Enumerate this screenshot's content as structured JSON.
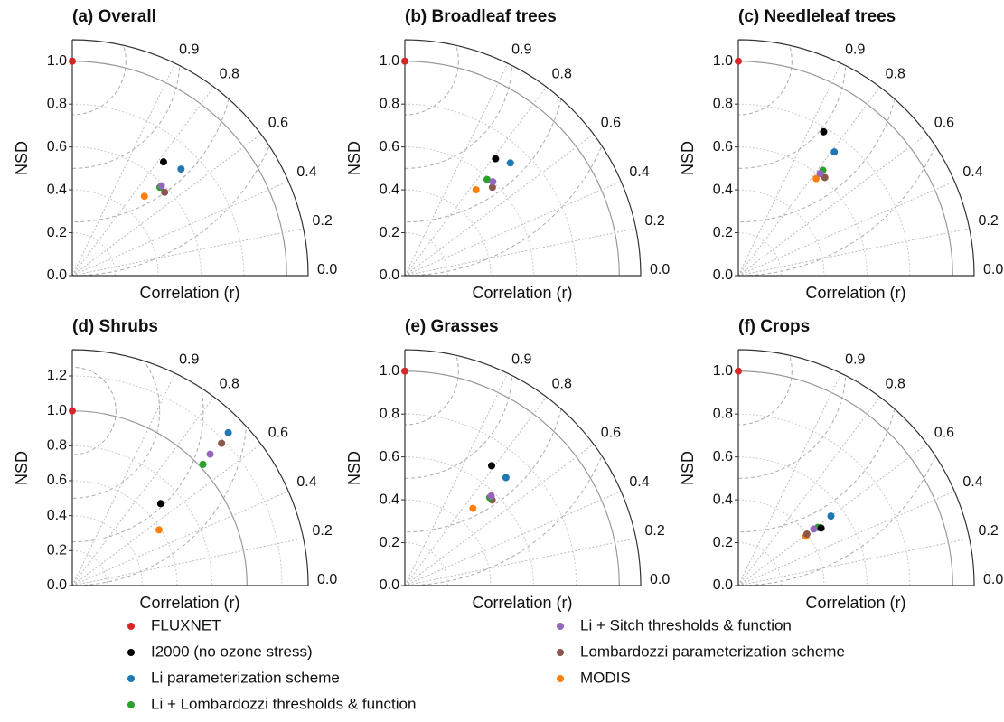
{
  "chart_data": [
    {
      "type": "taylor",
      "title": "(a) Overall",
      "xlabel": "Correlation (r)",
      "ylabel": "NSD",
      "ylim": [
        0,
        1.1
      ],
      "yticks": [
        {
          "value": 0,
          "label": "0.0"
        },
        0.2,
        0.4,
        0.6,
        0.8,
        {
          "value": 1,
          "label": "1.0"
        }
      ],
      "rticks": [
        0.9,
        0.8,
        0.6,
        0.4,
        0.2,
        {
          "value": 0,
          "label": "0.0"
        }
      ],
      "correlation": [
        1,
        0.78,
        0.7,
        0.71,
        0.71,
        0.67,
        0.74
      ],
      "nsd": [
        1,
        0.68,
        0.71,
        0.58,
        0.59,
        0.58,
        0.5
      ]
    },
    {
      "type": "taylor",
      "title": "(b) Broadleaf trees",
      "xlabel": "Correlation (r)",
      "ylabel": "NSD",
      "ylim": [
        0,
        1.1
      ],
      "yticks": [
        {
          "value": 0,
          "label": "0.0"
        },
        0.2,
        0.4,
        0.6,
        0.8,
        {
          "value": 1,
          "label": "1.0"
        }
      ],
      "rticks": [
        0.9,
        0.8,
        0.6,
        0.4,
        0.2,
        {
          "value": 0,
          "label": "0.0"
        }
      ],
      "correlation": [
        1,
        0.79,
        0.73,
        0.76,
        0.73,
        0.71,
        0.77
      ],
      "nsd": [
        1,
        0.69,
        0.72,
        0.59,
        0.6,
        0.58,
        0.52
      ]
    },
    {
      "type": "taylor",
      "title": "(c) Needleleaf trees",
      "xlabel": "Correlation (r)",
      "ylabel": "NSD",
      "ylim": [
        0,
        1.1
      ],
      "yticks": [
        {
          "value": 0,
          "label": "0.0"
        },
        0.2,
        0.4,
        0.6,
        0.8,
        {
          "value": 1,
          "label": "1.0"
        }
      ],
      "rticks": [
        0.9,
        0.8,
        0.6,
        0.4,
        0.2,
        {
          "value": 0,
          "label": "0.0"
        }
      ],
      "correlation": [
        1,
        0.86,
        0.79,
        0.78,
        0.78,
        0.75,
        0.78
      ],
      "nsd": [
        1,
        0.78,
        0.73,
        0.63,
        0.61,
        0.61,
        0.58
      ]
    },
    {
      "type": "taylor",
      "title": "(d) Shrubs",
      "xlabel": "Correlation (r)",
      "ylabel": "NSD",
      "ylim": [
        0,
        1.35
      ],
      "yticks": [
        {
          "value": 0,
          "label": "0.0"
        },
        0.2,
        0.4,
        0.6,
        0.8,
        {
          "value": 1,
          "label": "1.0"
        },
        1.2
      ],
      "rticks": [
        0.9,
        0.8,
        0.6,
        0.4,
        0.2,
        {
          "value": 0,
          "label": "0.0"
        }
      ],
      "correlation": [
        1,
        0.68,
        0.7,
        0.68,
        0.69,
        0.69,
        0.54
      ],
      "nsd": [
        1,
        0.69,
        1.25,
        1.02,
        1.09,
        1.18,
        0.59
      ]
    },
    {
      "type": "taylor",
      "title": "(e) Grasses",
      "xlabel": "Correlation (r)",
      "ylabel": "NSD",
      "ylim": [
        0,
        1.1
      ],
      "yticks": [
        {
          "value": 0,
          "label": "0.0"
        },
        0.2,
        0.4,
        0.6,
        0.8,
        {
          "value": 1,
          "label": "1.0"
        }
      ],
      "rticks": [
        0.9,
        0.8,
        0.6,
        0.4,
        0.2,
        {
          "value": 0,
          "label": "0.0"
        }
      ],
      "correlation": [
        1,
        0.81,
        0.73,
        0.72,
        0.72,
        0.7,
        0.75
      ],
      "nsd": [
        1,
        0.69,
        0.69,
        0.57,
        0.58,
        0.57,
        0.48
      ]
    },
    {
      "type": "taylor",
      "title": "(f) Crops",
      "xlabel": "Correlation (r)",
      "ylabel": "NSD",
      "ylim": [
        0,
        1.1
      ],
      "yticks": [
        {
          "value": 0,
          "label": "0.0"
        },
        0.2,
        0.4,
        0.6,
        0.8,
        {
          "value": 1,
          "label": "1.0"
        }
      ],
      "rticks": [
        0.9,
        0.8,
        0.6,
        0.4,
        0.2,
        {
          "value": 0,
          "label": "0.0"
        }
      ],
      "correlation": [
        1,
        0.57,
        0.6,
        0.59,
        0.6,
        0.6,
        0.59
      ],
      "nsd": [
        1,
        0.47,
        0.54,
        0.46,
        0.44,
        0.4,
        0.39
      ]
    }
  ],
  "legend": {
    "series": [
      {
        "name": "FLUXNET",
        "color": "#d62728"
      },
      {
        "name": "I2000 (no ozone stress)",
        "color": "#000000"
      },
      {
        "name": "Li parameterization scheme",
        "color": "#1f77b4"
      },
      {
        "name": "Li + Lombardozzi thresholds & function",
        "color": "#2ca02c"
      },
      {
        "name": "Li + Sitch thresholds & function",
        "color": "#9467bd"
      },
      {
        "name": "Lombardozzi parameterization scheme",
        "color": "#8c564b"
      },
      {
        "name": "MODIS",
        "color": "#ff7f0e"
      }
    ]
  }
}
